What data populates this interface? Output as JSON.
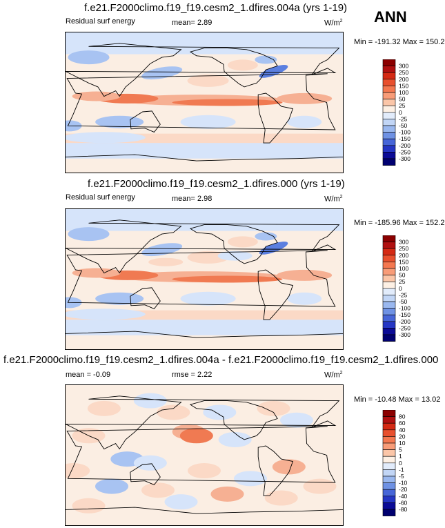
{
  "season": "ANN",
  "panels": [
    {
      "title": "f.e21.F2000climo.f19_f19.cesm2_1.dfires.004a (yrs 1-19)",
      "left_label": "Residual surf energy",
      "mean_label": "mean=  2.89",
      "units": "W/m",
      "units_sup": "2",
      "minmax": "Min = -191.32 Max = 150.22",
      "levels": [
        "300",
        "250",
        "200",
        "150",
        "100",
        "50",
        "25",
        "0",
        "-25",
        "-50",
        "-100",
        "-150",
        "-200",
        "-250",
        "-300"
      ]
    },
    {
      "title": "f.e21.F2000climo.f19_f19.cesm2_1.dfires.000 (yrs 1-19)",
      "left_label": "Residual surf energy",
      "mean_label": "mean=  2.98",
      "units": "W/m",
      "units_sup": "2",
      "minmax": "Min = -185.96 Max = 152.21",
      "levels": [
        "300",
        "250",
        "200",
        "150",
        "100",
        "50",
        "25",
        "0",
        "-25",
        "-50",
        "-100",
        "-150",
        "-200",
        "-250",
        "-300"
      ]
    },
    {
      "title": "f.e21.F2000climo.f19_f19.cesm2_1.dfires.004a - f.e21.F2000climo.f19_f19.cesm2_1.dfires.000",
      "left_label": "mean =  -0.09",
      "mean_label": "rmse =  2.22",
      "units": "W/m",
      "units_sup": "2",
      "minmax": "Min = -10.48 Max = 13.02",
      "levels": [
        "80",
        "60",
        "40",
        "20",
        "10",
        "5",
        "1",
        "0",
        "-1",
        "-5",
        "-10",
        "-20",
        "-40",
        "-60",
        "-80"
      ]
    }
  ],
  "colorbar_colors": [
    "#8b0000",
    "#b01010",
    "#d42a14",
    "#e8502e",
    "#f47850",
    "#f89c78",
    "#fbc6a8",
    "#fdf0e4",
    "#e2ecfb",
    "#c2d6f6",
    "#9ab8ef",
    "#6f92e4",
    "#4766d8",
    "#2536c4",
    "#0b0b96",
    "#000070"
  ],
  "map_colors": {
    "warm_strong": "#f07a52",
    "warm": "#f6b093",
    "warm_light": "#fbd9c6",
    "neutral": "#fbeee3",
    "cool_light": "#d6e4fa",
    "cool": "#a8c3f2",
    "cool_strong": "#5b7fe0",
    "coast": "#000000"
  },
  "chart_data": [
    {
      "type": "heatmap",
      "title": "f.e21.F2000climo.f19_f19.cesm2_1.dfires.004a (yrs 1-19)",
      "variable": "Residual surf energy",
      "units": "W/m2",
      "mean": 2.89,
      "min": -191.32,
      "max": 150.22,
      "levels": [
        -300,
        -250,
        -200,
        -150,
        -100,
        -50,
        -25,
        0,
        25,
        50,
        100,
        150,
        200,
        250,
        300
      ]
    },
    {
      "type": "heatmap",
      "title": "f.e21.F2000climo.f19_f19.cesm2_1.dfires.000 (yrs 1-19)",
      "variable": "Residual surf energy",
      "units": "W/m2",
      "mean": 2.98,
      "min": -185.96,
      "max": 152.21,
      "levels": [
        -300,
        -250,
        -200,
        -150,
        -100,
        -50,
        -25,
        0,
        25,
        50,
        100,
        150,
        200,
        250,
        300
      ]
    },
    {
      "type": "heatmap",
      "title": "f.e21.F2000climo.f19_f19.cesm2_1.dfires.004a - f.e21.F2000climo.f19_f19.cesm2_1.dfires.000",
      "units": "W/m2",
      "mean": -0.09,
      "rmse": 2.22,
      "min": -10.48,
      "max": 13.02,
      "levels": [
        -80,
        -60,
        -40,
        -20,
        -10,
        -5,
        -1,
        0,
        1,
        5,
        10,
        20,
        40,
        60,
        80
      ]
    }
  ]
}
